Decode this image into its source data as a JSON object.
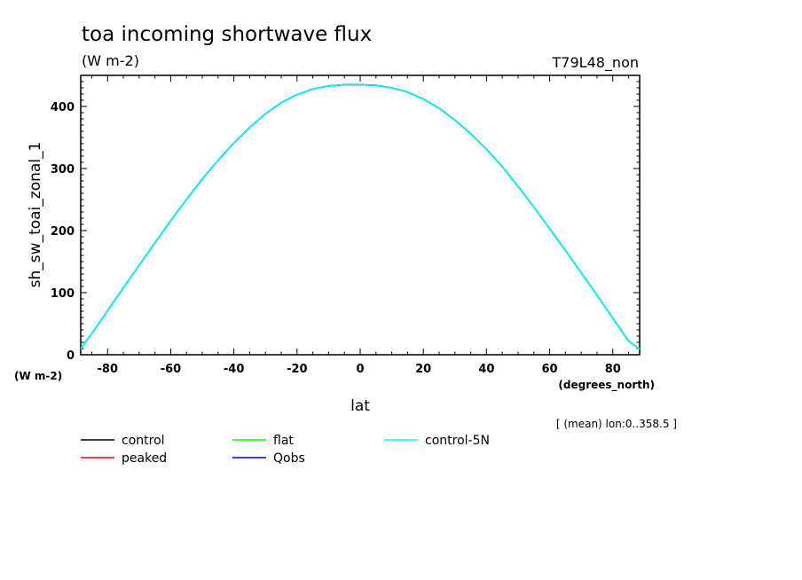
{
  "chart_data": {
    "type": "line",
    "title": "toa incoming shortwave flux",
    "units": "(W m-2)",
    "run_label": "T79L48_non",
    "xlabel": "lat",
    "x_units": "(degrees_north)",
    "ylabel": "sh_sw_toai_zonal_1",
    "y_units": "(W m-2)",
    "averaging_note": "[ (mean) lon:0..358.5 ]",
    "xlim": [
      -88.5,
      88.5
    ],
    "ylim": [
      0,
      450
    ],
    "x_ticks": [
      -80,
      -60,
      -40,
      -20,
      0,
      20,
      40,
      60,
      80
    ],
    "x_tick_labels": [
      "-80",
      "-60",
      "-40",
      "-20",
      "0",
      "20",
      "40",
      "60",
      "80"
    ],
    "y_ticks": [
      0,
      100,
      200,
      300,
      400
    ],
    "y_tick_labels": [
      "0",
      "100",
      "200",
      "300",
      "400"
    ],
    "grid": false,
    "legend_position": "bottom",
    "x": [
      -88.5,
      -85,
      -80,
      -75,
      -70,
      -65,
      -60,
      -55,
      -50,
      -45,
      -40,
      -35,
      -30,
      -25,
      -20,
      -15,
      -10,
      -5,
      0,
      5,
      10,
      15,
      20,
      25,
      30,
      35,
      40,
      45,
      50,
      55,
      60,
      65,
      70,
      75,
      80,
      85,
      88.5
    ],
    "series": [
      {
        "name": "control",
        "color": "#000000",
        "values": [
          10,
          34,
          71,
          108,
          144,
          180,
          216,
          250,
          283,
          313,
          341,
          366,
          388,
          406,
          419,
          428,
          433,
          435,
          435,
          434,
          430,
          423,
          412,
          397,
          378,
          356,
          331,
          303,
          271,
          238,
          203,
          168,
          132,
          96,
          59,
          22,
          9
        ]
      },
      {
        "name": "peaked",
        "color": "#ff0000",
        "values": [
          10,
          34,
          71,
          108,
          144,
          180,
          216,
          250,
          283,
          313,
          341,
          366,
          388,
          406,
          419,
          428,
          433,
          435,
          435,
          434,
          430,
          423,
          412,
          397,
          378,
          356,
          331,
          303,
          271,
          238,
          203,
          168,
          132,
          96,
          59,
          22,
          9
        ]
      },
      {
        "name": "flat",
        "color": "#00ff00",
        "values": [
          10,
          34,
          71,
          108,
          144,
          180,
          216,
          250,
          283,
          313,
          341,
          366,
          388,
          406,
          419,
          428,
          433,
          435,
          435,
          434,
          430,
          423,
          412,
          397,
          378,
          356,
          331,
          303,
          271,
          238,
          203,
          168,
          132,
          96,
          59,
          22,
          9
        ]
      },
      {
        "name": "Qobs",
        "color": "#0000ff",
        "values": [
          10,
          34,
          71,
          108,
          144,
          180,
          216,
          250,
          283,
          313,
          341,
          366,
          388,
          406,
          419,
          428,
          433,
          435,
          435,
          434,
          430,
          423,
          412,
          397,
          378,
          356,
          331,
          303,
          271,
          238,
          203,
          168,
          132,
          96,
          59,
          22,
          9
        ]
      },
      {
        "name": "control-5N",
        "color": "#00ffff",
        "values": [
          10,
          34,
          71,
          108,
          144,
          180,
          216,
          250,
          283,
          313,
          341,
          366,
          388,
          406,
          419,
          428,
          433,
          435,
          435,
          434,
          430,
          423,
          412,
          397,
          378,
          356,
          331,
          303,
          271,
          238,
          203,
          168,
          132,
          96,
          59,
          22,
          9
        ]
      }
    ]
  }
}
